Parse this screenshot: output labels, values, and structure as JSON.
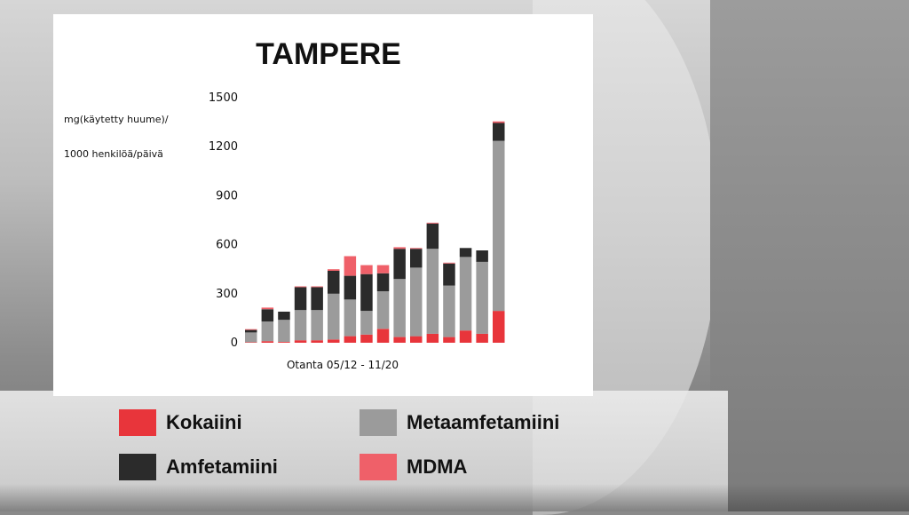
{
  "chart_data": {
    "type": "bar",
    "stacked": true,
    "title": "TAMPERE",
    "ylabel": [
      "mg(käytetty huume)/",
      "1000 henkilöä/päivä"
    ],
    "xlabel": "Otanta 05/12 - 11/20",
    "ylim": [
      0,
      1500
    ],
    "yticks": [
      0,
      300,
      600,
      900,
      1200,
      1500
    ],
    "grid": false,
    "legend_position": "bottom",
    "series": [
      {
        "name": "Kokaiini",
        "color": "#e8353b",
        "values": [
          3,
          10,
          5,
          15,
          15,
          20,
          40,
          50,
          85,
          35,
          40,
          55,
          35,
          75,
          55,
          195
        ]
      },
      {
        "name": "Metaamfetamiini",
        "color": "#9b9b9b",
        "values": [
          60,
          120,
          135,
          185,
          185,
          280,
          225,
          145,
          230,
          355,
          420,
          520,
          315,
          450,
          440,
          1040
        ]
      },
      {
        "name": "Amfetamiini",
        "color": "#2b2b2b",
        "values": [
          15,
          75,
          50,
          140,
          140,
          140,
          145,
          225,
          110,
          185,
          115,
          155,
          135,
          55,
          70,
          110
        ]
      },
      {
        "name": "MDMA",
        "color": "#ef6069",
        "values": [
          5,
          10,
          0,
          5,
          5,
          10,
          120,
          55,
          50,
          10,
          5,
          5,
          5,
          0,
          0,
          10
        ]
      }
    ]
  },
  "legend": [
    {
      "name": "Kokaiini",
      "color": "#e8353b"
    },
    {
      "name": "Metaamfetamiini",
      "color": "#9b9b9b"
    },
    {
      "name": "Amfetamiini",
      "color": "#2b2b2b"
    },
    {
      "name": "MDMA",
      "color": "#ef6069"
    }
  ]
}
